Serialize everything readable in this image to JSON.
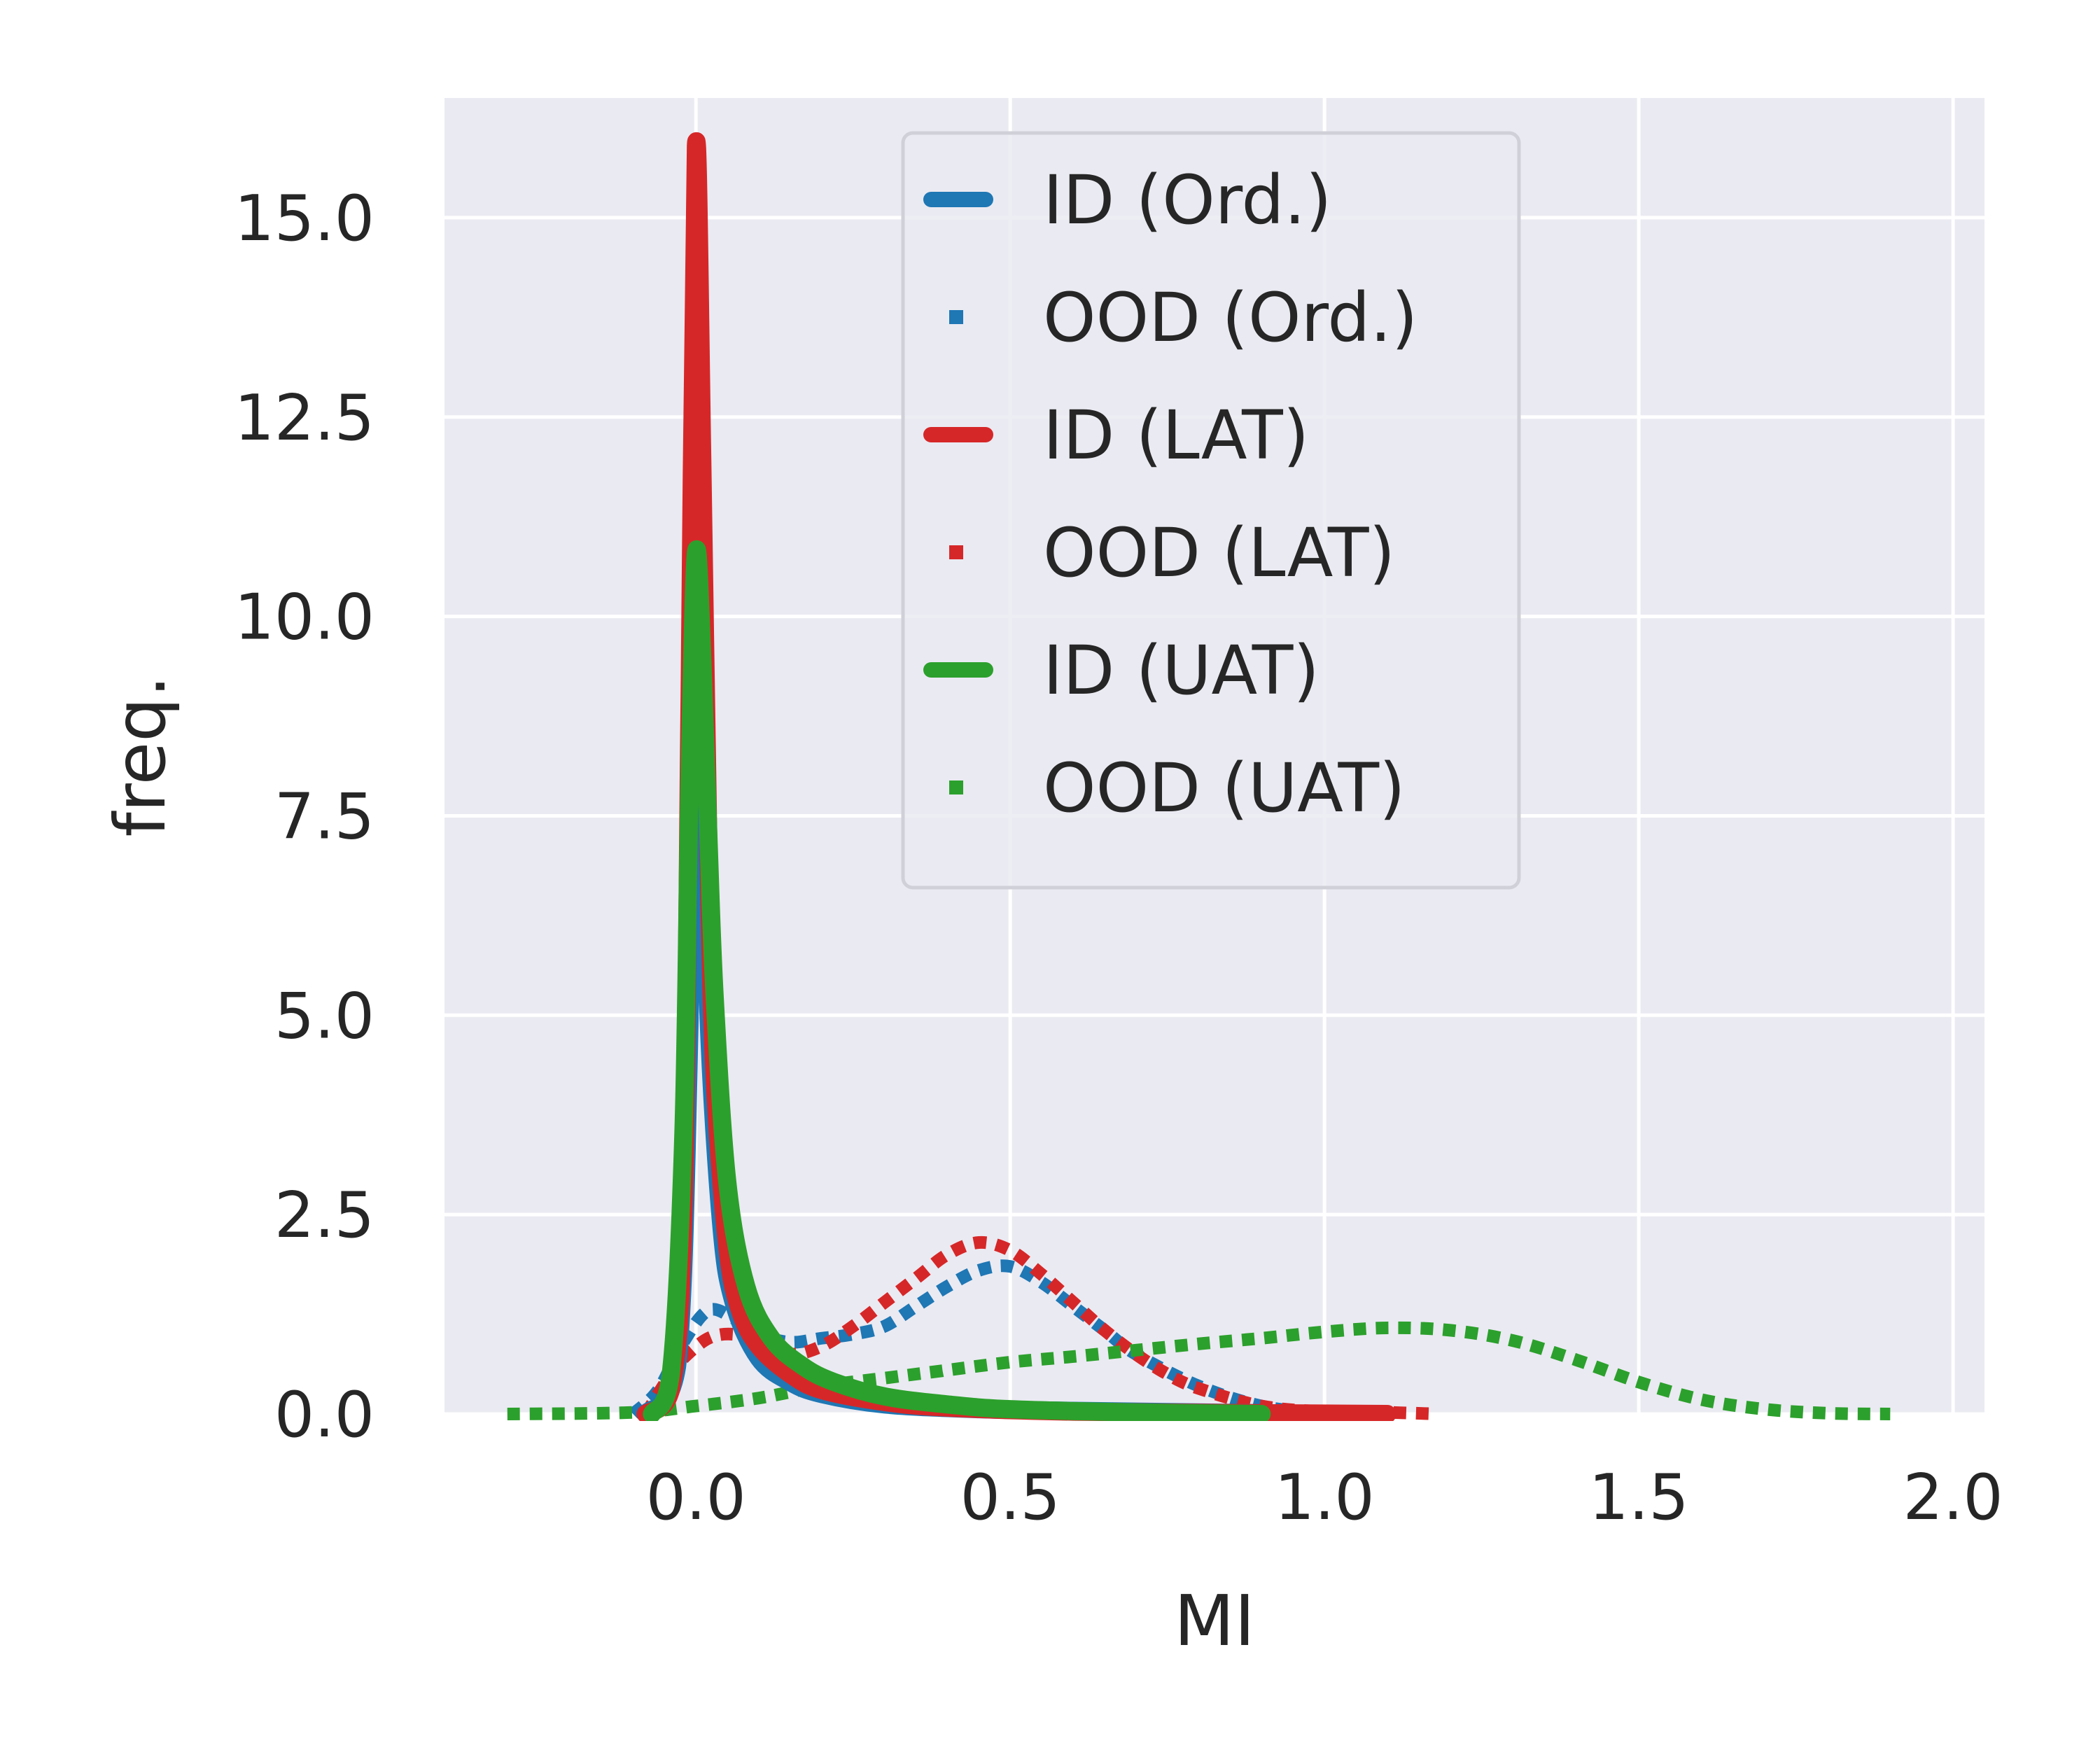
{
  "chart_data": {
    "type": "line",
    "title": "",
    "xlabel": "MI",
    "ylabel": "freq.",
    "xlim": [
      -0.4,
      2.05
    ],
    "ylim": [
      0,
      16.5
    ],
    "xticks": [
      "0.0",
      "0.5",
      "1.0",
      "1.5",
      "2.0"
    ],
    "yticks": [
      "0.0",
      "2.5",
      "5.0",
      "7.5",
      "10.0",
      "12.5",
      "15.0"
    ],
    "grid": true,
    "legend_position": "top-center",
    "series": [
      {
        "name": "ID (Ord.)",
        "color": "#1f77b4",
        "style": "solid",
        "x": [
          -0.08,
          -0.03,
          -0.01,
          0.0,
          0.01,
          0.02,
          0.04,
          0.06,
          0.1,
          0.15,
          0.2,
          0.3,
          0.45,
          0.6,
          0.8,
          1.0
        ],
        "y": [
          0.0,
          0.6,
          5.0,
          11.0,
          8.5,
          5.0,
          2.4,
          1.4,
          0.7,
          0.4,
          0.25,
          0.12,
          0.06,
          0.04,
          0.02,
          0.0
        ]
      },
      {
        "name": "OOD (Ord.)",
        "color": "#1f77b4",
        "style": "dotted",
        "x": [
          -0.1,
          -0.06,
          -0.02,
          0.02,
          0.06,
          0.1,
          0.15,
          0.2,
          0.25,
          0.3,
          0.35,
          0.4,
          0.45,
          0.5,
          0.55,
          0.6,
          0.65,
          0.7,
          0.8,
          0.9,
          1.0
        ],
        "y": [
          0.0,
          0.3,
          0.9,
          1.3,
          1.2,
          1.0,
          0.9,
          0.95,
          1.0,
          1.1,
          1.35,
          1.6,
          1.8,
          1.85,
          1.65,
          1.35,
          1.05,
          0.75,
          0.35,
          0.1,
          0.0
        ]
      },
      {
        "name": "ID (LAT)",
        "color": "#d62728",
        "style": "solid",
        "x": [
          -0.08,
          -0.04,
          -0.02,
          -0.01,
          0.0,
          0.01,
          0.02,
          0.03,
          0.05,
          0.07,
          0.1,
          0.15,
          0.2,
          0.3,
          0.4,
          0.6,
          0.9,
          1.1
        ],
        "y": [
          0.0,
          0.3,
          2.5,
          9.0,
          15.9,
          12.0,
          7.0,
          4.2,
          2.1,
          1.3,
          0.85,
          0.5,
          0.3,
          0.15,
          0.08,
          0.03,
          0.01,
          0.0
        ]
      },
      {
        "name": "OOD (LAT)",
        "color": "#d62728",
        "style": "dotted",
        "x": [
          -0.08,
          -0.04,
          -0.02,
          0.02,
          0.06,
          0.1,
          0.15,
          0.2,
          0.25,
          0.3,
          0.35,
          0.4,
          0.45,
          0.5,
          0.55,
          0.6,
          0.65,
          0.7,
          0.75,
          0.8,
          0.9,
          1.0,
          1.1,
          1.18
        ],
        "y": [
          0.0,
          0.5,
          0.7,
          0.95,
          1.0,
          0.9,
          0.75,
          0.85,
          1.1,
          1.4,
          1.7,
          2.0,
          2.15,
          2.05,
          1.75,
          1.4,
          1.05,
          0.75,
          0.5,
          0.32,
          0.1,
          0.03,
          0.02,
          0.0
        ]
      },
      {
        "name": "ID (UAT)",
        "color": "#2ca02c",
        "style": "solid",
        "x": [
          -0.07,
          -0.04,
          -0.02,
          -0.01,
          0.0,
          0.01,
          0.02,
          0.03,
          0.05,
          0.08,
          0.12,
          0.17,
          0.22,
          0.3,
          0.4,
          0.5,
          0.7,
          0.9
        ],
        "y": [
          0.0,
          0.5,
          3.5,
          8.0,
          10.8,
          9.5,
          7.2,
          5.2,
          2.9,
          1.6,
          0.95,
          0.6,
          0.4,
          0.22,
          0.12,
          0.06,
          0.02,
          0.0
        ]
      },
      {
        "name": "OOD (UAT)",
        "color": "#2ca02c",
        "style": "dotted",
        "x": [
          -0.3,
          -0.1,
          0.0,
          0.1,
          0.2,
          0.3,
          0.4,
          0.5,
          0.6,
          0.7,
          0.8,
          0.9,
          1.0,
          1.1,
          1.2,
          1.3,
          1.4,
          1.5,
          1.6,
          1.7,
          1.8,
          1.9
        ],
        "y": [
          0.0,
          0.02,
          0.1,
          0.2,
          0.35,
          0.45,
          0.55,
          0.65,
          0.72,
          0.8,
          0.88,
          0.95,
          1.03,
          1.08,
          1.05,
          0.92,
          0.68,
          0.4,
          0.18,
          0.06,
          0.01,
          0.0
        ]
      }
    ]
  }
}
